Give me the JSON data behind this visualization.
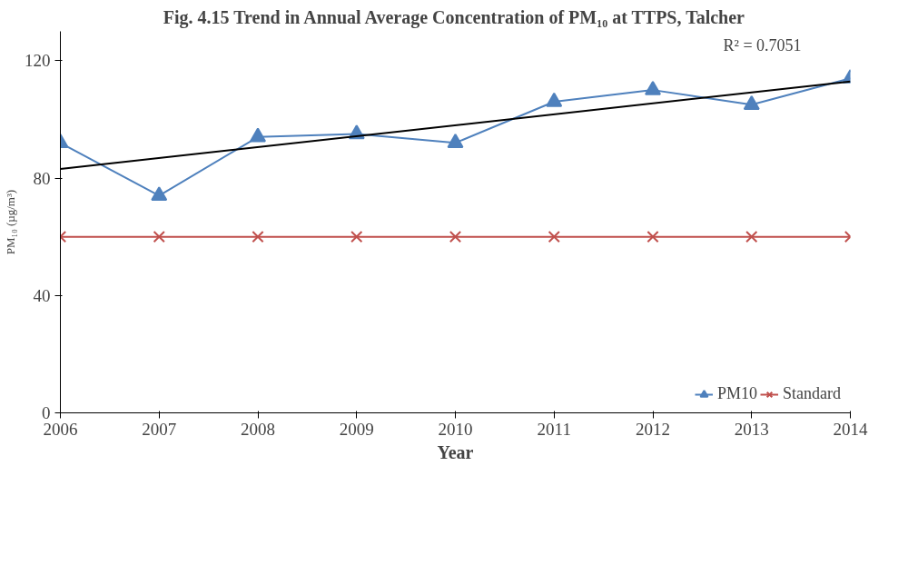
{
  "chart_data": {
    "type": "line",
    "title": "Fig. 4.15 Trend in Annual Average Concentration of PM₁₀ at TTPS, Talcher",
    "xlabel": "Year",
    "ylabel": "PM₁₀ (µg/m³)",
    "x": [
      2006,
      2007,
      2008,
      2009,
      2010,
      2011,
      2012,
      2013,
      2014
    ],
    "xlim": [
      2006,
      2014
    ],
    "xticks": [
      2006,
      2007,
      2008,
      2009,
      2010,
      2011,
      2012,
      2013,
      2014
    ],
    "ylim": [
      0,
      130
    ],
    "yticks": [
      0,
      40,
      80,
      120
    ],
    "grid": false,
    "legend": "bottom right",
    "annotations": [
      "R² = 0.7051"
    ],
    "series": [
      {
        "name": "PM10",
        "color": "#4f81bd",
        "marker": "triangle",
        "values": [
          92,
          74,
          94,
          95,
          92,
          106,
          110,
          105,
          114
        ]
      },
      {
        "name": "Standard",
        "color": "#c0504d",
        "marker": "cross",
        "values": [
          60,
          60,
          60,
          60,
          60,
          60,
          60,
          60,
          60
        ]
      },
      {
        "type": "line",
        "color": "#000000",
        "marker": "none",
        "x": [
          2006,
          2014
        ],
        "values": [
          83.1,
          112.9
        ]
      }
    ]
  }
}
